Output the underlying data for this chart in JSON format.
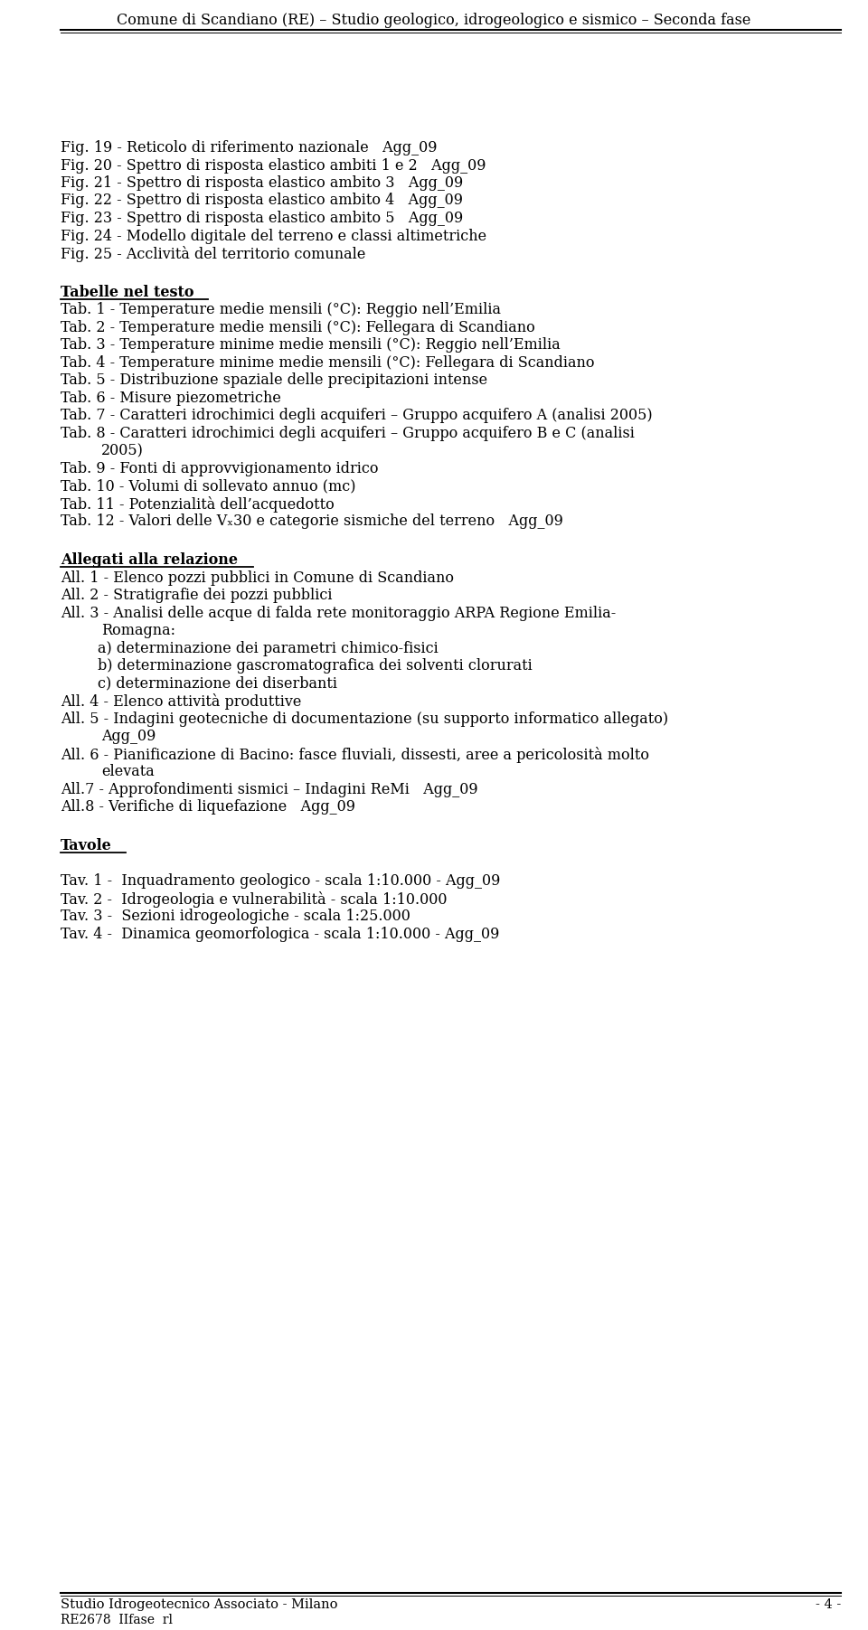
{
  "bg_color": "#ffffff",
  "header_text": "Comune di Scandiano (RE) – Studio geologico, idrogeologico e sismico – Seconda fase",
  "footer_left": "Studio Idrogeotecnico Associato - Milano",
  "footer_right": "- 4 -",
  "footer_ref": "RE2678  IIfase  rl",
  "fig_lines": [
    "Fig. 19 - Reticolo di riferimento nazionale   Agg_09",
    "Fig. 20 - Spettro di risposta elastico ambiti 1 e 2   Agg_09",
    "Fig. 21 - Spettro di risposta elastico ambito 3   Agg_09",
    "Fig. 22 - Spettro di risposta elastico ambito 4   Agg_09",
    "Fig. 23 - Spettro di risposta elastico ambito 5   Agg_09",
    "Fig. 24 - Modello digitale del terreno e classi altimetriche",
    "Fig. 25 - Acclività del territorio comunale"
  ],
  "tab_heading": "Tabelle nel testo",
  "tab_lines": [
    [
      "Tab. 1 - Temperature medie mensili (°C): Reggio nell’Emilia"
    ],
    [
      "Tab. 2 - Temperature medie mensili (°C): Fellegara di Scandiano"
    ],
    [
      "Tab. 3 - Temperature minime medie mensili (°C): Reggio nell’Emilia"
    ],
    [
      "Tab. 4 - Temperature minime medie mensili (°C): Fellegara di Scandiano"
    ],
    [
      "Tab. 5 - Distribuzione spaziale delle precipitazioni intense"
    ],
    [
      "Tab. 6 - Misure piezometriche"
    ],
    [
      "Tab. 7 - Caratteri idrochimici degli acquiferi – Gruppo acquifero A (analisi 2005)"
    ],
    [
      "Tab. 8 - Caratteri idrochimici degli acquiferi – Gruppo acquifero B e C (analisi",
      "        2005)"
    ],
    [
      "Tab. 9 - Fonti di approvvigionamento idrico"
    ],
    [
      "Tab. 10 - Volumi di sollevato annuo (mc)"
    ],
    [
      "Tab. 11 - Potenzialità dell’acquedotto"
    ],
    [
      "Tab. 12 - Valori delle Vₓ30 e categorie sismiche del terreno   Agg_09"
    ]
  ],
  "allegati_heading": "Allegati alla relazione",
  "allegati_lines": [
    [
      "All. 1 - Elenco pozzi pubblici in Comune di Scandiano"
    ],
    [
      "All. 2 - Stratigrafie dei pozzi pubblici"
    ],
    [
      "All. 3 - Analisi delle acque di falda rete monitoraggio ARPA Regione Emilia-",
      "        Romagna:"
    ],
    [
      "        a) determinazione dei parametri chimico-fisici"
    ],
    [
      "        b) determinazione gascromatografica dei solventi clorurati"
    ],
    [
      "        c) determinazione dei diserbanti"
    ],
    [
      "All. 4 - Elenco attività produttive"
    ],
    [
      "All. 5 - Indagini geotecniche di documentazione (su supporto informatico allegato)",
      "        Agg_09"
    ],
    [
      "All. 6 - Pianificazione di Bacino: fasce fluviali, dissesti, aree a pericolosità molto",
      "        elevata"
    ],
    [
      "All.7 - Approfondimenti sismici – Indagini ReMi   Agg_09"
    ],
    [
      "All.8 - Verifiche di liquefazione   Agg_09"
    ]
  ],
  "tavole_heading": "Tavole",
  "tavole_lines": [
    "Tav. 1 -  Inquadramento geologico - scala 1:10.000 - Agg_09",
    "Tav. 2 -  Idrogeologia e vulnerabilità - scala 1:10.000",
    "Tav. 3 -  Sezioni idrogeologiche - scala 1:25.000",
    "Tav. 4 -  Dinamica geomorfologica - scala 1:10.000 - Agg_09"
  ]
}
